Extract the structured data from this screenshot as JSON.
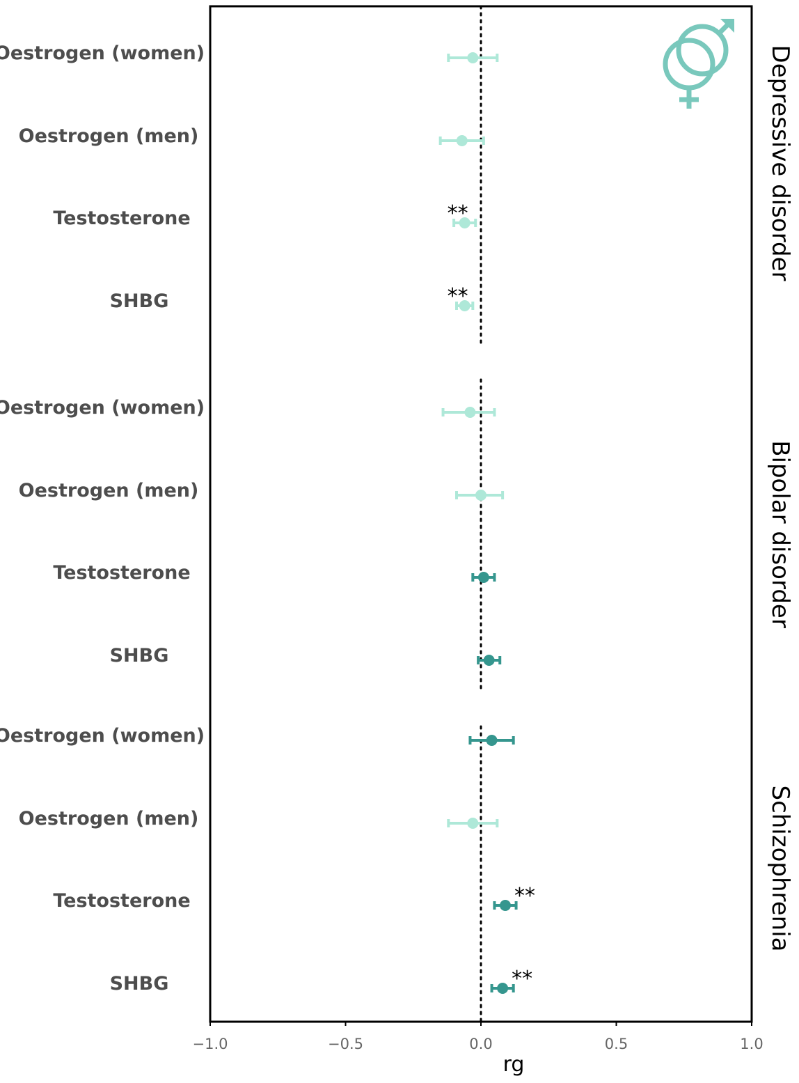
{
  "chart_data": {
    "type": "forest",
    "xlabel": "rg",
    "xlim": [
      -1.0,
      1.0
    ],
    "xticks": [
      -1.0,
      -0.5,
      0.0,
      0.5,
      1.0
    ],
    "xtick_labels": [
      "−1.0",
      "−0.5",
      "0.0",
      "0.5",
      "1.0"
    ],
    "reference_line": 0,
    "grid": false,
    "colors": {
      "light": "#aee8d8",
      "dark": "#35968e",
      "icon": "#79c8bc"
    },
    "icon": "gender-symbols-icon",
    "panels": [
      {
        "name": "Depressive disorder",
        "rows": [
          {
            "label": "Oestrogen (women)",
            "estimate": -0.03,
            "lower": -0.12,
            "upper": 0.06,
            "significant": false,
            "sig_label": ""
          },
          {
            "label": "Oestrogen (men)",
            "estimate": -0.07,
            "lower": -0.15,
            "upper": 0.01,
            "significant": false,
            "sig_label": ""
          },
          {
            "label": "Testosterone",
            "estimate": -0.06,
            "lower": -0.1,
            "upper": -0.02,
            "significant": false,
            "sig_label": "**"
          },
          {
            "label": "SHBG",
            "estimate": -0.06,
            "lower": -0.09,
            "upper": -0.03,
            "significant": false,
            "sig_label": "**"
          }
        ]
      },
      {
        "name": "Bipolar disorder",
        "rows": [
          {
            "label": "Oestrogen (women)",
            "estimate": -0.04,
            "lower": -0.14,
            "upper": 0.05,
            "significant": false,
            "sig_label": ""
          },
          {
            "label": "Oestrogen (men)",
            "estimate": 0.0,
            "lower": -0.09,
            "upper": 0.08,
            "significant": false,
            "sig_label": ""
          },
          {
            "label": "Testosterone",
            "estimate": 0.01,
            "lower": -0.03,
            "upper": 0.05,
            "significant": true,
            "sig_label": ""
          },
          {
            "label": "SHBG",
            "estimate": 0.03,
            "lower": -0.01,
            "upper": 0.07,
            "significant": true,
            "sig_label": ""
          }
        ]
      },
      {
        "name": "Schizophrenia",
        "rows": [
          {
            "label": "Oestrogen (women)",
            "estimate": 0.04,
            "lower": -0.04,
            "upper": 0.12,
            "significant": true,
            "sig_label": ""
          },
          {
            "label": "Oestrogen (men)",
            "estimate": -0.03,
            "lower": -0.12,
            "upper": 0.06,
            "significant": false,
            "sig_label": ""
          },
          {
            "label": "Testosterone",
            "estimate": 0.09,
            "lower": 0.05,
            "upper": 0.13,
            "significant": true,
            "sig_label": "**"
          },
          {
            "label": "SHBG",
            "estimate": 0.08,
            "lower": 0.04,
            "upper": 0.12,
            "significant": true,
            "sig_label": "**"
          }
        ]
      }
    ]
  }
}
